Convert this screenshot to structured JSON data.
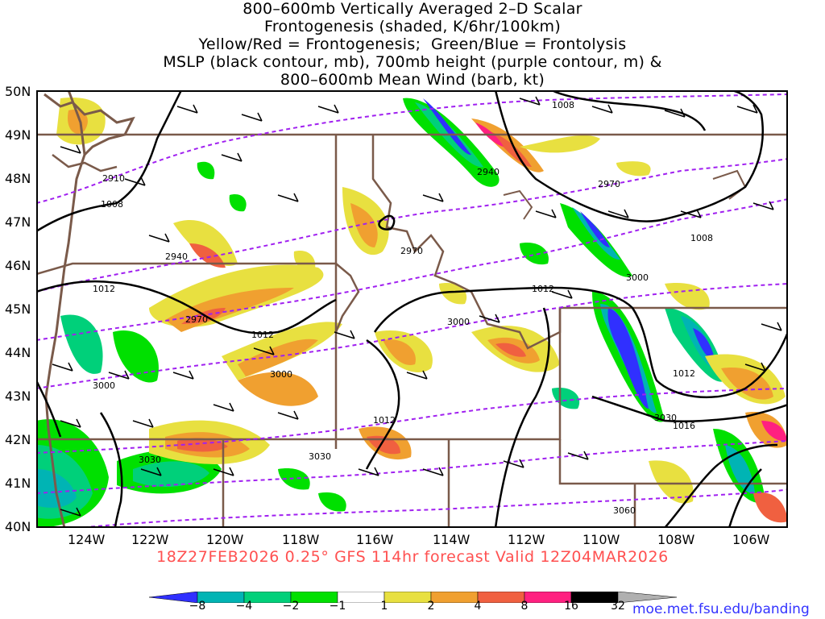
{
  "title": {
    "lines": [
      "800–600mb Vertically Averaged 2–D Scalar",
      "Frontogenesis (shaded, K/6hr/100km)",
      "Yellow/Red = Frontogenesis;  Green/Blue = Frontolysis",
      "MSLP (black contour, mb), 700mb height (purple contour, m) &",
      "800–600mb Mean Wind (barb, kt)"
    ]
  },
  "map": {
    "lat_labels": [
      "50N",
      "49N",
      "48N",
      "47N",
      "46N",
      "45N",
      "44N",
      "43N",
      "42N",
      "41N",
      "40N"
    ],
    "lon_labels": [
      "124W",
      "122W",
      "120W",
      "118W",
      "116W",
      "114W",
      "112W",
      "110W",
      "108W",
      "106W"
    ],
    "mslp_labels": [
      "1008",
      "1008",
      "1008",
      "1012",
      "1012",
      "1012",
      "1012",
      "1012",
      "1016"
    ],
    "height_labels": [
      "2910",
      "2940",
      "2940",
      "2970",
      "2970",
      "2970",
      "3000",
      "3000",
      "3000",
      "3000",
      "3030",
      "3030",
      "3030",
      "3060"
    ],
    "colors": {
      "mslp": "#000000",
      "height": "#a020f0",
      "borders": "#7a5a4a",
      "barb": "#000000"
    }
  },
  "valid_line": "18Z27FEB2026 0.25° GFS 114hr forecast Valid 12Z04MAR2026",
  "colorbar": {
    "labels": [
      "−8",
      "−4",
      "−2",
      "−1",
      "1",
      "2",
      "4",
      "8",
      "16",
      "32"
    ],
    "colors": [
      "#3030ff",
      "#00b4b4",
      "#00d07a",
      "#00e000",
      "#ffffff",
      "#e8e040",
      "#f0a030",
      "#f06040",
      "#ff2080",
      "#000000",
      "#b0b0b0"
    ]
  },
  "site": "moe.met.fsu.edu/banding"
}
